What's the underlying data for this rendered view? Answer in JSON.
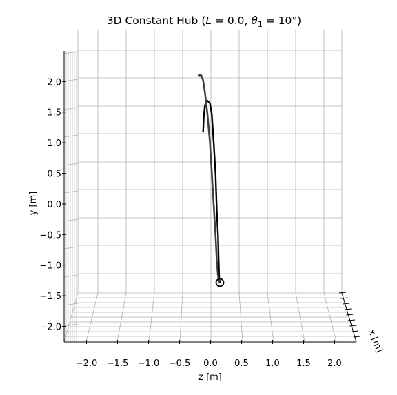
{
  "chart_data": {
    "type": "line",
    "title": "3D Constant Hub (",
    "title_parts": {
      "prefix": "3D Constant Hub (",
      "L_sym": "L",
      "L_eq": " = 0.0, ",
      "theta_sym": "θ",
      "theta_sub": "1",
      "theta_eq": " = 10°)"
    },
    "zlabel": "z [m]",
    "ylabel": "y [m]",
    "xlabel": "x [m]",
    "z_ticks": [
      "−2.0",
      "−1.5",
      "−1.0",
      "−0.5",
      "0.0",
      "0.5",
      "1.0",
      "1.5",
      "2.0"
    ],
    "y_ticks": [
      "−2.0",
      "−1.5",
      "−1.0",
      "−0.5",
      "0.0",
      "0.5",
      "1.0",
      "1.5",
      "2.0"
    ],
    "zlim": [
      -2.35,
      2.35
    ],
    "ylim": [
      -2.3,
      2.3
    ],
    "grid": true,
    "series": [
      {
        "color": "#000000",
        "z": [
          -0.12,
          -0.11,
          -0.09,
          -0.05,
          -0.01,
          0.02,
          0.05,
          0.08,
          0.1,
          0.12,
          0.13,
          0.14,
          0.15
        ],
        "y": [
          1.17,
          1.4,
          1.6,
          1.67,
          1.63,
          1.45,
          1.0,
          0.5,
          -0.1,
          -0.5,
          -0.9,
          -1.2,
          -1.26
        ]
      },
      {
        "color": "#404040",
        "z": [
          -0.18,
          -0.15,
          -0.12,
          -0.09,
          -0.05,
          -0.01,
          0.02,
          0.05,
          0.08,
          0.1,
          0.12,
          0.14
        ],
        "y": [
          2.08,
          2.08,
          2.0,
          1.8,
          1.45,
          1.0,
          0.5,
          0.0,
          -0.5,
          -0.9,
          -1.15,
          -1.26
        ]
      }
    ],
    "marker": {
      "z": 0.15,
      "y": -1.26,
      "shape": "circle-open"
    }
  }
}
